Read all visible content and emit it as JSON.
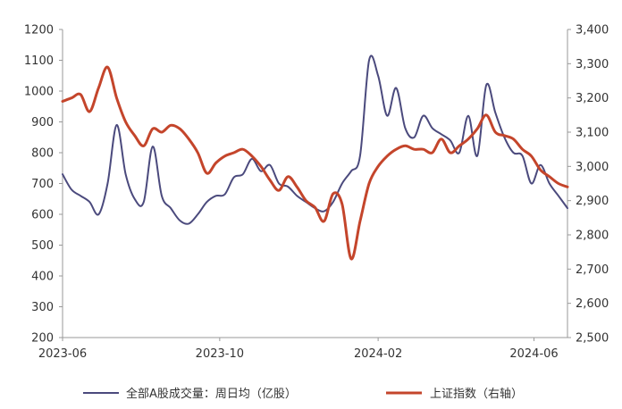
{
  "chart_data": {
    "type": "line",
    "x_tick_labels": [
      "2023-06",
      "2023-10",
      "2024-02",
      "2024-06"
    ],
    "y_left": {
      "ylim": [
        200,
        1200
      ],
      "ticks": [
        "200",
        "300",
        "400",
        "500",
        "600",
        "700",
        "800",
        "900",
        "1000",
        "1100",
        "1200"
      ]
    },
    "y_right": {
      "ylim": [
        2500,
        3400
      ],
      "ticks": [
        "2,500",
        "2,600",
        "2,700",
        "2,800",
        "2,900",
        "3,000",
        "3,100",
        "3,200",
        "3,300",
        "3,400"
      ]
    },
    "series": [
      {
        "name": "全部A股成交量：周日均（亿股）",
        "axis": "left",
        "color": "#4b4a7d",
        "x": [
          "2023-06-01",
          "2023-06-08",
          "2023-06-15",
          "2023-06-22",
          "2023-06-29",
          "2023-07-06",
          "2023-07-13",
          "2023-07-20",
          "2023-07-27",
          "2023-08-03",
          "2023-08-10",
          "2023-08-17",
          "2023-08-24",
          "2023-08-31",
          "2023-09-07",
          "2023-09-14",
          "2023-09-21",
          "2023-09-28",
          "2023-10-05",
          "2023-10-12",
          "2023-10-19",
          "2023-10-26",
          "2023-11-02",
          "2023-11-09",
          "2023-11-16",
          "2023-11-23",
          "2023-11-30",
          "2023-12-07",
          "2023-12-14",
          "2023-12-21",
          "2023-12-28",
          "2024-01-04",
          "2024-01-11",
          "2024-01-18",
          "2024-01-25",
          "2024-02-01",
          "2024-02-08",
          "2024-02-15",
          "2024-02-22",
          "2024-02-29",
          "2024-03-07",
          "2024-03-14",
          "2024-03-21",
          "2024-03-28",
          "2024-04-04",
          "2024-04-11",
          "2024-04-18",
          "2024-04-25",
          "2024-05-02",
          "2024-05-09",
          "2024-05-16",
          "2024-05-23",
          "2024-05-30",
          "2024-06-06",
          "2024-06-13",
          "2024-06-20",
          "2024-06-27"
        ],
        "values": [
          730,
          680,
          660,
          640,
          600,
          700,
          890,
          730,
          650,
          640,
          820,
          660,
          620,
          580,
          570,
          600,
          640,
          660,
          665,
          720,
          730,
          780,
          740,
          760,
          700,
          690,
          660,
          640,
          620,
          610,
          640,
          700,
          740,
          790,
          1100,
          1050,
          920,
          1010,
          880,
          850,
          920,
          880,
          860,
          840,
          800,
          920,
          790,
          1020,
          930,
          850,
          800,
          790,
          700,
          760,
          700,
          660,
          620
        ]
      },
      {
        "name": "上证指数（右轴）",
        "axis": "right",
        "color": "#c4452b",
        "x": [
          "2023-06-01",
          "2023-06-08",
          "2023-06-15",
          "2023-06-22",
          "2023-06-29",
          "2023-07-06",
          "2023-07-13",
          "2023-07-20",
          "2023-07-27",
          "2023-08-03",
          "2023-08-10",
          "2023-08-17",
          "2023-08-24",
          "2023-08-31",
          "2023-09-07",
          "2023-09-14",
          "2023-09-21",
          "2023-09-28",
          "2023-10-05",
          "2023-10-12",
          "2023-10-19",
          "2023-10-26",
          "2023-11-02",
          "2023-11-09",
          "2023-11-16",
          "2023-11-23",
          "2023-11-30",
          "2023-12-07",
          "2023-12-14",
          "2023-12-21",
          "2023-12-28",
          "2024-01-04",
          "2024-01-11",
          "2024-01-18",
          "2024-01-25",
          "2024-02-01",
          "2024-02-08",
          "2024-02-15",
          "2024-02-22",
          "2024-02-29",
          "2024-03-07",
          "2024-03-14",
          "2024-03-21",
          "2024-03-28",
          "2024-04-04",
          "2024-04-11",
          "2024-04-18",
          "2024-04-25",
          "2024-05-02",
          "2024-05-09",
          "2024-05-16",
          "2024-05-23",
          "2024-05-30",
          "2024-06-06",
          "2024-06-13",
          "2024-06-20",
          "2024-06-27"
        ],
        "values": [
          3190,
          3200,
          3210,
          3160,
          3230,
          3290,
          3200,
          3130,
          3090,
          3060,
          3110,
          3100,
          3120,
          3110,
          3080,
          3040,
          2980,
          3010,
          3030,
          3040,
          3050,
          3030,
          3000,
          2960,
          2930,
          2970,
          2940,
          2900,
          2880,
          2840,
          2920,
          2890,
          2730,
          2840,
          2950,
          3000,
          3030,
          3050,
          3060,
          3050,
          3050,
          3040,
          3080,
          3040,
          3060,
          3080,
          3110,
          3150,
          3100,
          3090,
          3080,
          3050,
          3030,
          2990,
          2970,
          2950,
          2940
        ]
      }
    ],
    "grid": false,
    "legend_position": "bottom"
  }
}
